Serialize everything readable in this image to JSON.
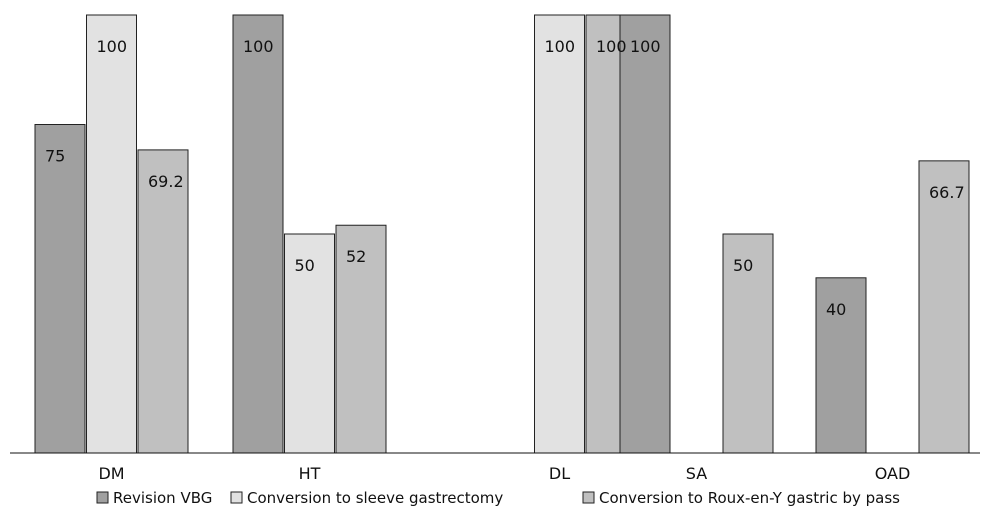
{
  "chart_data": {
    "type": "bar",
    "categories": [
      "DM",
      "HT",
      "DL",
      "SA",
      "OAD"
    ],
    "series": [
      {
        "name": "Revision VBG",
        "color": "#a0a0a0",
        "values": [
          75,
          100,
          null,
          100,
          40
        ],
        "labels": [
          "75",
          "100",
          "",
          "100",
          "40"
        ]
      },
      {
        "name": "Conversion to sleeve gastrectomy",
        "color": "#e2e2e2",
        "values": [
          100,
          50,
          100,
          null,
          null
        ],
        "labels": [
          "100",
          "50",
          "100",
          "",
          ""
        ]
      },
      {
        "name": "Conversion to Roux-en-Y gastric by pass",
        "color": "#c0c0c0",
        "values": [
          69.2,
          52,
          100,
          50,
          66.7
        ],
        "labels": [
          "69.2",
          "52",
          "100",
          "50",
          "66.7"
        ]
      }
    ],
    "title": "",
    "xlabel": "",
    "ylabel": "",
    "ylim": [
      0,
      100
    ],
    "grid": false,
    "legend_position": "bottom"
  }
}
